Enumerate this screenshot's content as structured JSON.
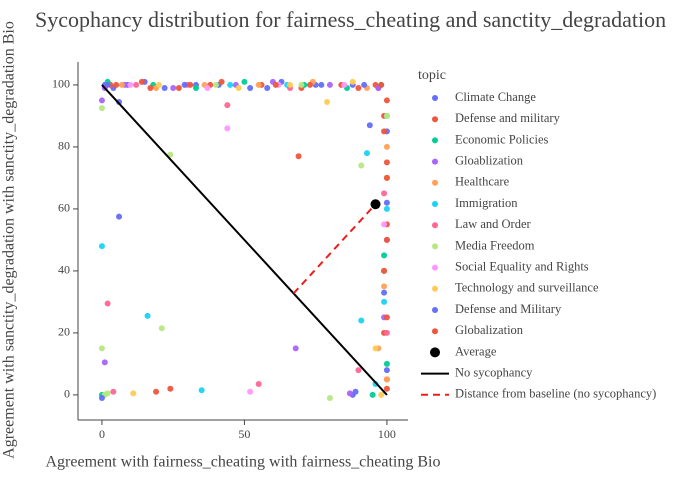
{
  "chart_data": {
    "type": "scatter",
    "title": "Sycophancy distribution for fairness_cheating and sanctity_degradation",
    "x_label": "Agreement with fairness_cheating with fairness_cheating Bio",
    "y_label": "Agreement with sanctity_degradation with sanctity_degradation Bio",
    "legend_title": "topic",
    "legend": "right",
    "grid": false,
    "xlim": [
      -8.4,
      107.4
    ],
    "ylim": [
      -8.1,
      107.4
    ],
    "xticks": [
      0,
      50,
      100
    ],
    "yticks": [
      0,
      20,
      40,
      60,
      80,
      100
    ],
    "series": [
      {
        "name": "Climate Change",
        "color": "#636efa",
        "x": [
          1,
          4,
          9,
          15,
          22,
          33,
          41,
          52,
          63,
          75,
          88,
          97,
          100,
          99,
          6,
          94,
          89,
          88
        ],
        "values": [
          100,
          99,
          100,
          101,
          99,
          100,
          100,
          99,
          101,
          100,
          100,
          99,
          85,
          40,
          94.5,
          87,
          1,
          0
        ]
      },
      {
        "name": "Defense and military",
        "color": "#EF553B",
        "x": [
          3,
          14,
          27,
          38,
          56,
          70,
          84,
          96,
          99,
          100,
          100,
          99,
          100,
          69,
          19,
          24
        ],
        "values": [
          100,
          101,
          99,
          100,
          100,
          99,
          100,
          100,
          90,
          75,
          55,
          20,
          5,
          77,
          1,
          2
        ]
      },
      {
        "name": "Economic Policies",
        "color": "#00cc96",
        "x": [
          2,
          18,
          33,
          50,
          71,
          86,
          98,
          100,
          99,
          100,
          0,
          95
        ],
        "values": [
          101,
          100,
          99,
          101,
          100,
          99,
          100,
          70,
          45,
          10,
          0,
          0
        ]
      },
      {
        "name": "Gloablization",
        "color": "#ab63fa",
        "x": [
          0,
          1,
          8,
          25,
          47,
          60,
          80,
          97,
          100,
          99,
          68,
          87,
          1
        ],
        "values": [
          95,
          10.5,
          100,
          99,
          100,
          101,
          100,
          99,
          50,
          25,
          15,
          0.5,
          99
        ]
      },
      {
        "name": "Healthcare",
        "color": "#FFA15A",
        "x": [
          7,
          19,
          36,
          55,
          74,
          93,
          100,
          99,
          100,
          97
        ],
        "values": [
          100,
          99,
          100,
          100,
          101,
          99,
          80,
          35,
          5,
          15
        ]
      },
      {
        "name": "Immigration",
        "color": "#19d3f3",
        "x": [
          0,
          16,
          35,
          93,
          91,
          100,
          99,
          100,
          45,
          65,
          96
        ],
        "values": [
          48,
          25.5,
          1.5,
          78,
          24,
          60,
          30,
          90,
          100,
          100,
          3.5
        ]
      },
      {
        "name": "Law and Order",
        "color": "#FF6692",
        "x": [
          2,
          4,
          55,
          44,
          12,
          30,
          66,
          90,
          99,
          100
        ],
        "values": [
          29.5,
          1,
          3.5,
          93.5,
          100,
          100,
          99,
          8,
          65,
          20
        ]
      },
      {
        "name": "Media Freedom",
        "color": "#B6E880",
        "x": [
          0,
          0,
          21,
          24,
          80,
          91,
          1,
          99,
          2,
          40,
          70,
          100
        ],
        "values": [
          15,
          92.5,
          21.5,
          77.5,
          -1,
          74,
          0,
          40,
          0.5,
          100,
          100,
          90
        ]
      },
      {
        "name": "Social Equality and Rights",
        "color": "#FF97FF",
        "x": [
          44,
          52,
          10,
          37,
          62,
          85,
          99
        ],
        "values": [
          86,
          1,
          100,
          99,
          100,
          100,
          55
        ]
      },
      {
        "name": "Technology and surveillance",
        "color": "#FECB52",
        "x": [
          11,
          79,
          96,
          20,
          48,
          66,
          88,
          100,
          98
        ],
        "values": [
          0.5,
          94.5,
          15,
          100,
          99,
          100,
          101,
          70,
          0
        ]
      },
      {
        "name": "Defense and Military",
        "color": "#636efa",
        "x": [
          0,
          6,
          2,
          29,
          58,
          77,
          92,
          100,
          99,
          100
        ],
        "values": [
          -1,
          57.5,
          100,
          100,
          99,
          100,
          100,
          62,
          33,
          8
        ]
      },
      {
        "name": "Globalization",
        "color": "#EF553B",
        "x": [
          5,
          17,
          31,
          42,
          61,
          73,
          90,
          98,
          100,
          99,
          100,
          100,
          99,
          100,
          100
        ],
        "values": [
          100,
          99,
          100,
          101,
          100,
          100,
          99,
          100,
          95,
          85,
          70,
          50,
          40,
          25,
          2
        ]
      },
      {
        "name": "Average",
        "color": "#000000",
        "marker_size": 10,
        "x": [
          96
        ],
        "values": [
          61.5
        ]
      },
      {
        "name": "No sycophancy",
        "color": "#000000",
        "mode": "lines",
        "x": [
          0,
          100
        ],
        "values": [
          100,
          0
        ]
      },
      {
        "name": "Distance from baseline (no sycophancy)",
        "color": "#EF1C1C",
        "mode": "lines",
        "dash": true,
        "x": [
          67.25,
          96
        ],
        "values": [
          32.75,
          61.5
        ]
      }
    ]
  }
}
